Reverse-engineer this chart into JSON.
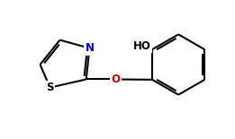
{
  "bg_color": "#ffffff",
  "bond_color": "#000000",
  "N_color": "#0000cd",
  "O_color": "#cc0000",
  "S_color": "#000000",
  "line_width": 1.5,
  "font_size": 8.5,
  "figsize": [
    2.61,
    1.55
  ],
  "dpi": 100,
  "xlim": [
    0.2,
    7.0
  ],
  "ylim": [
    1.0,
    5.2
  ]
}
